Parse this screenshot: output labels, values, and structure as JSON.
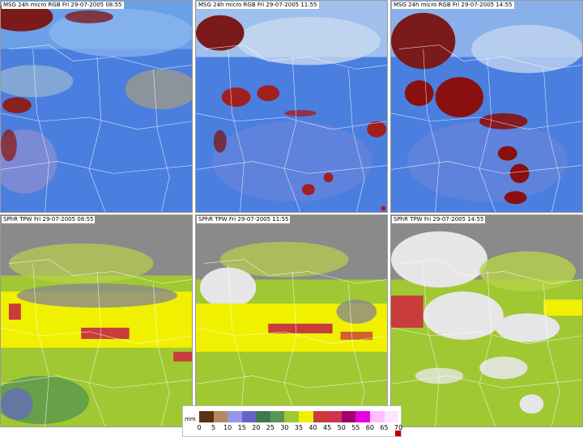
{
  "panels": {
    "rgb": [
      {
        "label": "MSG 24h micro RGB Fri 29-07-2005 08:55"
      },
      {
        "label": "MSG 24h micro RGB Fri 29-07-2005 11:55"
      },
      {
        "label": "MSG 24h micro RGB Fri 29-07-2005 14:55"
      }
    ],
    "tpw": [
      {
        "label": "SPhR TPW Fri 29-07-2005 08:55"
      },
      {
        "label": "SPhR TPW Fri 29-07-2005 11:55"
      },
      {
        "label": "SPhR TPW Fri 29-07-2005 14:55"
      }
    ]
  },
  "legend": {
    "unit": "mm",
    "ticks": [
      "0",
      "5",
      "10",
      "15",
      "20",
      "25",
      "30",
      "35",
      "40",
      "45",
      "50",
      "55",
      "60",
      "65",
      "70"
    ],
    "colors": [
      "#5a3214",
      "#b48a64",
      "#9696e6",
      "#6464c8",
      "#3c7850",
      "#5a9650",
      "#a0c832",
      "#f0f000",
      "#c83c3c",
      "#d23250",
      "#a0006e",
      "#e600e6",
      "#ffbeff",
      "#ffe6ff"
    ]
  }
}
